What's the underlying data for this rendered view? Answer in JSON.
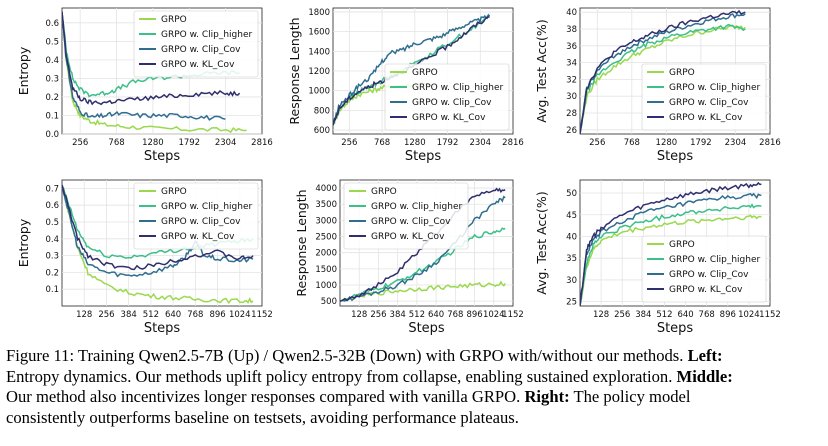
{
  "colors": {
    "GRPO": "#9ad94e",
    "GRPO w. Clip_higher": "#3dbf8a",
    "GRPO w. Clip_Cov": "#2f6e8f",
    "GRPO w. KL_Cov": "#2f2f6e"
  },
  "chart_data": [
    {
      "type": "line",
      "id": "top-entropy",
      "ylabel": "Entropy",
      "xlabel": "Steps",
      "xticks": [
        256,
        768,
        1280,
        1792,
        2304,
        2816
      ],
      "xlim": [
        0,
        2816
      ],
      "yticks": [
        0.0,
        0.1,
        0.2,
        0.3,
        0.4,
        0.5,
        0.6
      ],
      "ylim": [
        0,
        0.68
      ],
      "legend": "top-right",
      "series": [
        {
          "name": "GRPO",
          "x": [
            0,
            60,
            150,
            256,
            400,
            600,
            900,
            1300,
            1800,
            2300,
            2600
          ],
          "y": [
            0.66,
            0.4,
            0.18,
            0.1,
            0.07,
            0.05,
            0.04,
            0.03,
            0.025,
            0.022,
            0.02
          ]
        },
        {
          "name": "GRPO w. Clip_higher",
          "x": [
            0,
            60,
            150,
            256,
            400,
            600,
            768,
            1000,
            1280,
            1600,
            1900,
            2200,
            2500
          ],
          "y": [
            0.66,
            0.45,
            0.3,
            0.24,
            0.21,
            0.22,
            0.24,
            0.28,
            0.3,
            0.31,
            0.32,
            0.33,
            0.33
          ]
        },
        {
          "name": "GRPO w. Clip_Cov",
          "x": [
            0,
            60,
            150,
            256,
            400,
            600,
            800,
            1100,
            1400,
            1700,
            2000,
            2300
          ],
          "y": [
            0.66,
            0.4,
            0.2,
            0.12,
            0.09,
            0.1,
            0.11,
            0.1,
            0.1,
            0.1,
            0.09,
            0.08
          ]
        },
        {
          "name": "GRPO w. KL_Cov",
          "x": [
            0,
            60,
            150,
            256,
            400,
            600,
            800,
            1100,
            1400,
            1700,
            2000,
            2300,
            2500
          ],
          "y": [
            0.66,
            0.42,
            0.25,
            0.19,
            0.17,
            0.17,
            0.18,
            0.19,
            0.2,
            0.21,
            0.22,
            0.22,
            0.22
          ]
        }
      ]
    },
    {
      "type": "line",
      "id": "top-response",
      "ylabel": "Response Length",
      "xlabel": "Steps",
      "xticks": [
        256,
        768,
        1280,
        1792,
        2304,
        2816
      ],
      "xlim": [
        0,
        2816
      ],
      "yticks": [
        600,
        800,
        1000,
        1200,
        1400,
        1600,
        1800
      ],
      "ylim": [
        560,
        1840
      ],
      "legend": "bottom-right",
      "series": [
        {
          "name": "GRPO",
          "x": [
            0,
            100,
            256,
            400,
            600,
            768,
            1000,
            1280,
            1500
          ],
          "y": [
            650,
            800,
            900,
            960,
            1000,
            1030,
            1050,
            1060,
            1080
          ]
        },
        {
          "name": "GRPO w. Clip_higher",
          "x": [
            0,
            100,
            256,
            400,
            600,
            768,
            1000,
            1280,
            1600,
            1900,
            2200,
            2450
          ],
          "y": [
            650,
            820,
            930,
            990,
            1050,
            1100,
            1180,
            1280,
            1400,
            1520,
            1640,
            1760
          ]
        },
        {
          "name": "GRPO w. Clip_Cov",
          "x": [
            0,
            100,
            256,
            400,
            600,
            768,
            900,
            1100,
            1280,
            1500,
            1700,
            1900,
            2100,
            2300,
            2450
          ],
          "y": [
            650,
            850,
            950,
            1050,
            1150,
            1300,
            1380,
            1420,
            1480,
            1520,
            1560,
            1620,
            1680,
            1720,
            1760
          ]
        },
        {
          "name": "GRPO w. KL_Cov",
          "x": [
            0,
            100,
            256,
            400,
            600,
            768,
            1000,
            1280,
            1500,
            1792,
            2000,
            2200,
            2450
          ],
          "y": [
            650,
            820,
            920,
            990,
            1050,
            1100,
            1170,
            1250,
            1340,
            1450,
            1550,
            1650,
            1750
          ]
        }
      ]
    },
    {
      "type": "line",
      "id": "top-acc",
      "ylabel": "Avg. Test Acc(%)",
      "xlabel": "Steps",
      "xticks": [
        256,
        768,
        1280,
        1792,
        2304,
        2816
      ],
      "xlim": [
        0,
        2816
      ],
      "yticks": [
        26,
        28,
        30,
        32,
        34,
        36,
        38,
        40
      ],
      "ylim": [
        25.5,
        40.5
      ],
      "legend": "bottom-right",
      "series": [
        {
          "name": "GRPO",
          "x": [
            0,
            100,
            256,
            500,
            768,
            1000,
            1280,
            1600,
            1900,
            2200,
            2450
          ],
          "y": [
            25.5,
            30,
            32,
            33.5,
            34.8,
            35.6,
            36.5,
            37.3,
            37.8,
            38.2,
            38.2
          ]
        },
        {
          "name": "GRPO w. Clip_higher",
          "x": [
            0,
            100,
            256,
            500,
            768,
            1000,
            1280,
            1600,
            1900,
            2200,
            2450
          ],
          "y": [
            25.5,
            30.5,
            32.5,
            34,
            35.3,
            36.2,
            37,
            37.6,
            38,
            38.3,
            38
          ]
        },
        {
          "name": "GRPO w. Clip_Cov",
          "x": [
            0,
            100,
            256,
            500,
            768,
            1000,
            1280,
            1600,
            1900,
            2200,
            2450
          ],
          "y": [
            25.5,
            31,
            33,
            34.8,
            36,
            36.8,
            37.6,
            38.4,
            39,
            39.5,
            39.8
          ]
        },
        {
          "name": "GRPO w. KL_Cov",
          "x": [
            0,
            100,
            256,
            500,
            768,
            1000,
            1280,
            1600,
            1900,
            2200,
            2450
          ],
          "y": [
            25.5,
            31,
            33.3,
            35.2,
            36.4,
            37.2,
            38,
            38.8,
            39.4,
            39.8,
            40
          ]
        }
      ]
    },
    {
      "type": "line",
      "id": "bottom-entropy",
      "ylabel": "Entropy",
      "xlabel": "Steps",
      "xticks": [
        128,
        256,
        384,
        512,
        640,
        768,
        896,
        1024,
        1152
      ],
      "xlim": [
        0,
        1152
      ],
      "yticks": [
        0.1,
        0.2,
        0.3,
        0.4,
        0.5,
        0.6,
        0.7
      ],
      "ylim": [
        0,
        0.75
      ],
      "legend": "top-right",
      "series": [
        {
          "name": "GRPO",
          "x": [
            0,
            40,
            90,
            150,
            256,
            384,
            512,
            640,
            768,
            896,
            1024,
            1100
          ],
          "y": [
            0.72,
            0.55,
            0.35,
            0.2,
            0.12,
            0.08,
            0.06,
            0.05,
            0.04,
            0.035,
            0.03,
            0.03
          ]
        },
        {
          "name": "GRPO w. Clip_higher",
          "x": [
            0,
            40,
            90,
            150,
            256,
            384,
            512,
            640,
            768,
            896,
            1024,
            1100
          ],
          "y": [
            0.72,
            0.6,
            0.45,
            0.35,
            0.3,
            0.29,
            0.31,
            0.33,
            0.35,
            0.37,
            0.39,
            0.4
          ]
        },
        {
          "name": "GRPO w. Clip_Cov",
          "x": [
            0,
            40,
            90,
            150,
            256,
            384,
            512,
            640,
            700,
            768,
            820,
            896,
            1024,
            1100
          ],
          "y": [
            0.72,
            0.55,
            0.35,
            0.25,
            0.2,
            0.18,
            0.2,
            0.24,
            0.28,
            0.38,
            0.3,
            0.28,
            0.27,
            0.28
          ]
        },
        {
          "name": "GRPO w. KL_Cov",
          "x": [
            0,
            40,
            90,
            150,
            256,
            384,
            512,
            640,
            768,
            896,
            1024,
            1100
          ],
          "y": [
            0.72,
            0.58,
            0.4,
            0.3,
            0.25,
            0.22,
            0.24,
            0.27,
            0.3,
            0.32,
            0.28,
            0.3
          ]
        }
      ]
    },
    {
      "type": "line",
      "id": "bottom-response",
      "ylabel": "Response Length",
      "xlabel": "Steps",
      "xticks": [
        128,
        256,
        384,
        512,
        640,
        768,
        896,
        1024,
        1152
      ],
      "xlim": [
        0,
        1152
      ],
      "yticks": [
        500,
        1000,
        1500,
        2000,
        2500,
        3000,
        3500,
        4000
      ],
      "ylim": [
        350,
        4250
      ],
      "legend": "top-left",
      "series": [
        {
          "name": "GRPO",
          "x": [
            0,
            128,
            256,
            384,
            512,
            640,
            768,
            896,
            1024,
            1100
          ],
          "y": [
            500,
            650,
            750,
            820,
            880,
            920,
            960,
            990,
            1020,
            1050
          ]
        },
        {
          "name": "GRPO w. Clip_higher",
          "x": [
            0,
            128,
            256,
            384,
            512,
            640,
            768,
            896,
            1024,
            1100
          ],
          "y": [
            500,
            700,
            900,
            1100,
            1400,
            1700,
            2100,
            2500,
            2650,
            2750
          ]
        },
        {
          "name": "GRPO w. Clip_Cov",
          "x": [
            0,
            128,
            256,
            384,
            512,
            640,
            768,
            896,
            1024,
            1100
          ],
          "y": [
            500,
            650,
            800,
            1000,
            1300,
            1700,
            2300,
            3000,
            3500,
            3700
          ]
        },
        {
          "name": "GRPO w. KL_Cov",
          "x": [
            0,
            128,
            256,
            384,
            512,
            640,
            768,
            896,
            1024,
            1100
          ],
          "y": [
            500,
            700,
            1000,
            1400,
            2000,
            2600,
            3200,
            3800,
            3900,
            3950
          ]
        }
      ]
    },
    {
      "type": "line",
      "id": "bottom-acc",
      "ylabel": "Avg. Test Acc(%)",
      "xlabel": "Steps",
      "xticks": [
        128,
        256,
        384,
        512,
        640,
        768,
        896,
        1024,
        1152
      ],
      "xlim": [
        0,
        1152
      ],
      "yticks": [
        25,
        30,
        35,
        40,
        45,
        50
      ],
      "ylim": [
        24,
        53
      ],
      "legend": "bottom-right",
      "series": [
        {
          "name": "GRPO",
          "x": [
            0,
            40,
            80,
            128,
            256,
            384,
            512,
            640,
            768,
            896,
            1024,
            1100
          ],
          "y": [
            24,
            33,
            37,
            39,
            41,
            42,
            42.8,
            43.3,
            43.8,
            44.2,
            44.5,
            44.5
          ]
        },
        {
          "name": "GRPO w. Clip_higher",
          "x": [
            0,
            40,
            80,
            128,
            256,
            384,
            512,
            640,
            768,
            896,
            1024,
            1100
          ],
          "y": [
            24,
            34,
            38,
            40,
            42,
            43.5,
            44.5,
            45.5,
            46,
            46.5,
            46.8,
            47
          ]
        },
        {
          "name": "GRPO w. Clip_Cov",
          "x": [
            0,
            40,
            80,
            128,
            256,
            384,
            512,
            640,
            768,
            896,
            1024,
            1100
          ],
          "y": [
            24,
            36,
            39,
            41,
            43.5,
            45.5,
            46.5,
            47.5,
            48.3,
            49,
            49.3,
            49.5
          ]
        },
        {
          "name": "GRPO w. KL_Cov",
          "x": [
            0,
            40,
            80,
            128,
            256,
            384,
            512,
            640,
            768,
            896,
            1024,
            1100
          ],
          "y": [
            24,
            37,
            40,
            42,
            45,
            47,
            48.5,
            49.5,
            50.5,
            51.2,
            51.8,
            52
          ]
        }
      ]
    }
  ],
  "caption": {
    "line1_a": "Figure 11: Training Qwen2.5-7B (Up) / Qwen2.5-32B (Down) with GRPO with/without our methods. ",
    "line1_b": "Left:",
    "line2_a": "Entropy dynamics. Our methods uplift policy entropy from collapse, enabling sustained exploration. ",
    "line2_b": "Middle:",
    "line3_a": "Our method also incentivizes longer responses compared with vanilla GRPO. ",
    "line3_b": "Right:",
    "line3_c": " The policy model",
    "line4": "consistently outperforms baseline on testsets, avoiding performance plateaus."
  }
}
